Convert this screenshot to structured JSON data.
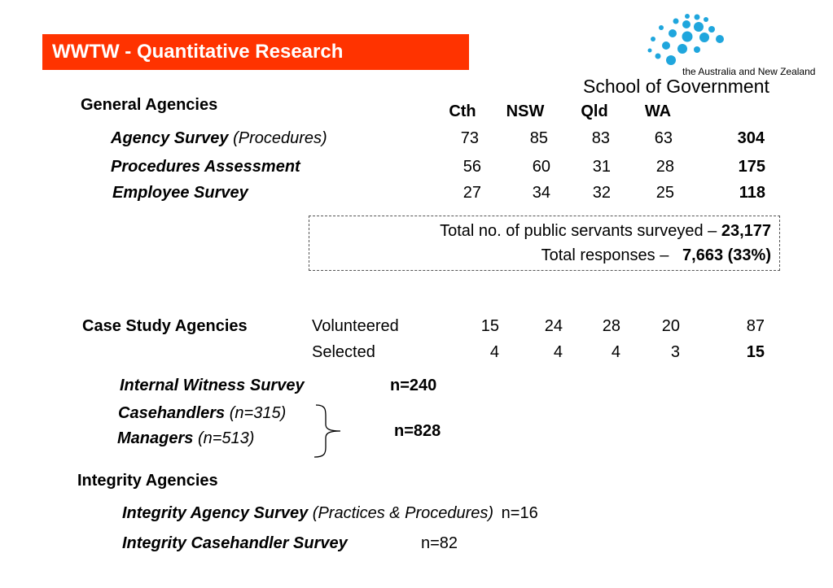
{
  "header": {
    "title": "WWTW - Quantitative Research"
  },
  "logo": {
    "line1": "the Australia and New Zealand",
    "line2": "School of Government",
    "dot_color": "#1fa6dd"
  },
  "general": {
    "heading": "General Agencies",
    "columns": [
      "Cth",
      "NSW",
      "Qld",
      "WA"
    ],
    "rows": [
      {
        "name": "Agency Survey",
        "note": "(Procedures)",
        "values": [
          "73",
          "85",
          "83",
          "63"
        ],
        "total": "304"
      },
      {
        "name": "Procedures Assessment",
        "note": "",
        "values": [
          "56",
          "60",
          "31",
          "28"
        ],
        "total": "175"
      },
      {
        "name": "Employee Survey",
        "note": "",
        "values": [
          "27",
          "34",
          "32",
          "25"
        ],
        "total": "118"
      }
    ]
  },
  "totals": {
    "line1_label": "Total no. of public servants surveyed – ",
    "line1_value": "23,177",
    "line2_label": "Total responses – ",
    "line2_value": "7,663 (33%)"
  },
  "case_study": {
    "heading": "Case Study Agencies",
    "rows": [
      {
        "label": "Volunteered",
        "values": [
          "15",
          "24",
          "28",
          "20"
        ],
        "total": "87"
      },
      {
        "label": "Selected",
        "values": [
          "4",
          "4",
          "4",
          "3"
        ],
        "total": "15"
      }
    ],
    "internal_witness": {
      "name": "Internal Witness Survey",
      "n": "n=240"
    },
    "casehandlers": {
      "name": "Casehandlers",
      "note": "(n=315)"
    },
    "managers": {
      "name": "Managers",
      "note": "(n=513)"
    },
    "combined_n": "n=828"
  },
  "integrity": {
    "heading": "Integrity Agencies",
    "agency_survey": {
      "name": "Integrity Agency Survey",
      "note": "(Practices & Procedures)",
      "n": "n=16"
    },
    "casehandler_survey": {
      "name": "Integrity Casehandler Survey",
      "n": "n=82"
    }
  }
}
